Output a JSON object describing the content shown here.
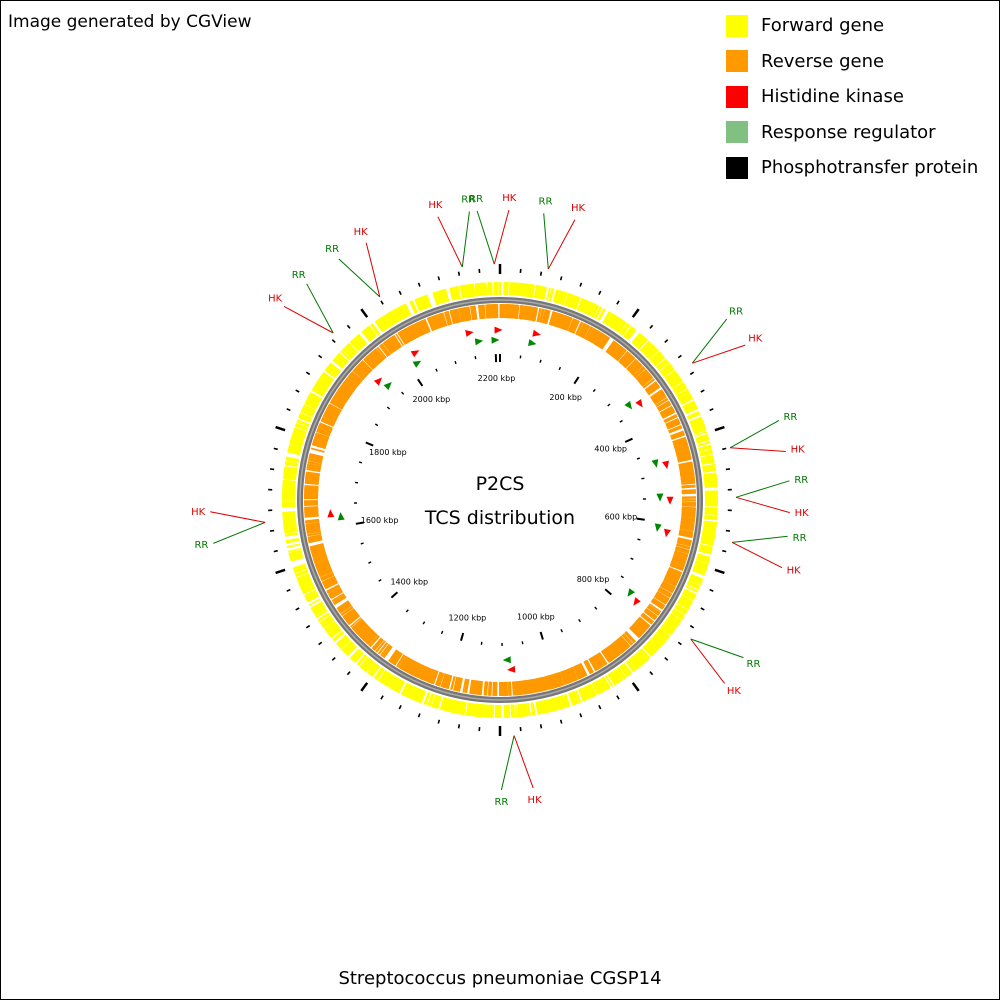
{
  "credit": "Image generated by CGView",
  "legend": [
    {
      "label": "Forward gene",
      "color": "#ffff00"
    },
    {
      "label": "Reverse gene",
      "color": "#ff9900"
    },
    {
      "label": "Histidine kinase",
      "color": "#ff0000"
    },
    {
      "label": "Response regulator",
      "color": "#80c080"
    },
    {
      "label": "Phosphotransfer protein",
      "color": "#000000"
    }
  ],
  "center_title": "P2CS",
  "center_subtitle": "TCS distribution",
  "organism": "Streptococcus pneumoniae CGSP14",
  "genome_length_kbp": 2210,
  "tick_labels": [
    "200 kbp",
    "400 kbp",
    "600 kbp",
    "800 kbp",
    "1000 kbp",
    "1200 kbp",
    "1400 kbp",
    "1600 kbp",
    "1800 kbp",
    "2000 kbp",
    "2200 kbp"
  ],
  "tick_values_kbp": [
    200,
    400,
    600,
    800,
    1000,
    1200,
    1400,
    1600,
    1800,
    2000,
    2200
  ],
  "label_colors": {
    "HK": "#dd0000",
    "RR": "#007700"
  },
  "tcs_callouts": [
    {
      "first": "HK",
      "second": "RR",
      "first_kbp": 2145,
      "second_kbp": 2162
    },
    {
      "first": "RR",
      "second": "HK",
      "first_kbp": 2198,
      "second_kbp": 2205
    },
    {
      "first": "RR",
      "second": "HK",
      "first_kbp": 70,
      "second_kbp": 75
    },
    {
      "first": "RR",
      "second": "HK",
      "first_kbp": 330,
      "second_kbp": 340
    },
    {
      "first": "RR",
      "second": "HK",
      "first_kbp": 470,
      "second_kbp": 478
    },
    {
      "first": "RR",
      "second": "HK",
      "first_kbp": 545,
      "second_kbp": 552
    },
    {
      "first": "RR",
      "second": "HK",
      "first_kbp": 612,
      "second_kbp": 620
    },
    {
      "first": "RR",
      "second": "HK",
      "first_kbp": 770,
      "second_kbp": 778
    },
    {
      "first": "HK",
      "second": "RR",
      "first_kbp": 1080,
      "second_kbp": 1088
    },
    {
      "first": "RR",
      "second": "HK",
      "first_kbp": 1620,
      "second_kbp": 1628
    },
    {
      "first": "HK",
      "second": "RR",
      "first_kbp": 1930,
      "second_kbp": 1938
    },
    {
      "first": "RR",
      "second": "HK",
      "first_kbp": 2018,
      "second_kbp": 2026
    }
  ]
}
